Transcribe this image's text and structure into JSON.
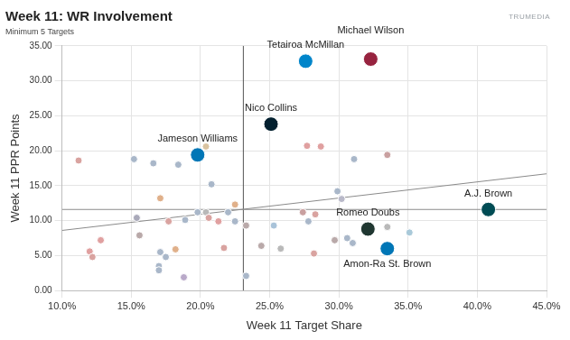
{
  "chart_data": {
    "type": "scatter",
    "title": "Week 11: WR Involvement",
    "subtitle": "Minimum 5 Targets",
    "logo": "TRUMEDIA",
    "x_label": "Week 11 Target Share",
    "y_label": "Week 11 PPR Points",
    "xlim": [
      10,
      45
    ],
    "xticks": [
      {
        "value": 10,
        "label": "10.0%"
      },
      {
        "value": 15,
        "label": "15.0%"
      },
      {
        "value": 20,
        "label": "20.0%"
      },
      {
        "value": 25,
        "label": "25.0%"
      },
      {
        "value": 30,
        "label": "30.0%"
      },
      {
        "value": 35,
        "label": "35.0%"
      },
      {
        "value": 40,
        "label": "40.0%"
      },
      {
        "value": 45,
        "label": "45.0%"
      }
    ],
    "ylim": [
      0,
      35
    ],
    "yticks": [
      {
        "value": 0,
        "label": "0.00"
      },
      {
        "value": 5,
        "label": "5.00"
      },
      {
        "value": 10,
        "label": "10.00"
      },
      {
        "value": 15,
        "label": "15.00"
      },
      {
        "value": 20,
        "label": "20.00"
      },
      {
        "value": 25,
        "label": "25.00"
      },
      {
        "value": 30,
        "label": "30.00"
      },
      {
        "value": 35,
        "label": "35.00"
      }
    ],
    "grid": true,
    "x": [
      27.6,
      32.3,
      25.1,
      19.8,
      32.1,
      40.8,
      33.5,
      11.2,
      15.2,
      16.6,
      18.4,
      20.4,
      20.8,
      17.1,
      27.7,
      28.7,
      31.1,
      33.5,
      29.9,
      30.2,
      22.5,
      22.0,
      19.8,
      20.4,
      20.6,
      21.3,
      22.5,
      23.3,
      25.3,
      27.4,
      28.3,
      27.8,
      30.6,
      33.5,
      35.1,
      31.0,
      29.7,
      15.4,
      17.7,
      18.9,
      15.6,
      12.8,
      12.0,
      12.2,
      17.1,
      18.2,
      17.5,
      17.0,
      17.0,
      18.8,
      21.7,
      24.4,
      25.8,
      28.2,
      23.3
    ],
    "values": [
      32.8,
      33.1,
      23.8,
      19.4,
      8.8,
      11.6,
      6.0,
      18.6,
      18.8,
      18.2,
      18.0,
      20.6,
      15.2,
      13.2,
      20.7,
      20.6,
      18.8,
      19.4,
      14.2,
      13.1,
      12.3,
      11.2,
      11.2,
      11.2,
      10.4,
      9.9,
      9.9,
      9.3,
      9.3,
      11.2,
      10.9,
      9.9,
      7.5,
      9.1,
      8.3,
      6.8,
      7.2,
      10.4,
      9.9,
      10.1,
      7.9,
      7.2,
      5.6,
      4.8,
      5.5,
      5.9,
      4.8,
      3.5,
      2.9,
      1.9,
      6.1,
      6.4,
      6.0,
      5.3,
      2.1
    ],
    "labels": [
      "Tetairoa McMillan",
      "Michael Wilson",
      "Nico Collins",
      "Jameson Williams",
      "Romeo Doubs",
      "A.J. Brown",
      "Amon-Ra St. Brown",
      null,
      null,
      null,
      null,
      null,
      null,
      null,
      null,
      null,
      null,
      null,
      null,
      null,
      null,
      null,
      null,
      null,
      null,
      null,
      null,
      null,
      null,
      null,
      null,
      null,
      null,
      null,
      null,
      null,
      null,
      null,
      null,
      null,
      null,
      null,
      null,
      null,
      null,
      null,
      null,
      null,
      null,
      null,
      null,
      null,
      null,
      null,
      null,
      null
    ],
    "colors": [
      "#0085ca",
      "#97233f",
      "#03202f",
      "#0076b6",
      "#203731",
      "#004c54",
      "#0076b6",
      "#d9a3a0",
      "#a9b7c9",
      "#a9b7c9",
      "#a9b7c9",
      "#d9c3a0",
      "#a9b7c9",
      "#e0b08a",
      "#e0a0a0",
      "#e0a0a0",
      "#a9b7c9",
      "#c9a0a0",
      "#a9b7c9",
      "#b9b9c9",
      "#e0b08a",
      "#a9b7c9",
      "#a9b7c9",
      "#b9b9b9",
      "#d9a3a0",
      "#e0a0a0",
      "#a9b7c9",
      "#b9a9a9",
      "#a9c3d9",
      "#c9a0a0",
      "#d9a3a0",
      "#a9b7c9",
      "#a9b7c9",
      "#b9b9b9",
      "#a9c9d9",
      "#a9b7c9",
      "#b9a9a9",
      "#a9a9b9",
      "#d9a3a0",
      "#a9b7c9",
      "#b9a9a9",
      "#e0a0a0",
      "#e0a0a0",
      "#d9a3a0",
      "#a9b7c9",
      "#e0b08a",
      "#a9b7c9",
      "#a9b7c9",
      "#a9b7c9",
      "#b9a9c9",
      "#d9a3a0",
      "#b9a9a9",
      "#b9b9b9",
      "#d9a3a0",
      "#a9b7c9"
    ],
    "reference_lines": {
      "x": 23.1,
      "y": 11.6
    },
    "trend_line": {
      "x": [
        10,
        45
      ],
      "values": [
        8.6,
        16.7
      ]
    }
  }
}
